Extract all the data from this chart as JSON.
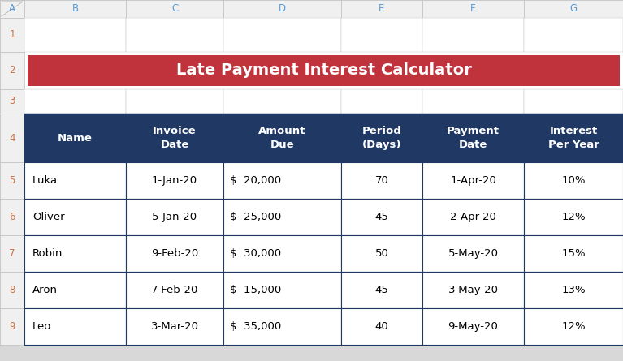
{
  "title": "Late Payment Interest Calculator",
  "title_bg_color": "#C0323C",
  "title_text_color": "#FFFFFF",
  "header_bg_color": "#1F3864",
  "header_text_color": "#FFFFFF",
  "cell_bg_color": "#FFFFFF",
  "cell_text_color": "#000000",
  "border_color": "#1F3864",
  "outer_bg_color": "#D8D8D8",
  "col_headers": [
    "Name",
    "Invoice\nDate",
    "Amount\nDue",
    "Period\n(Days)",
    "Payment\nDate",
    "Interest\nPer Year"
  ],
  "rows": [
    [
      "Luka",
      "1-Jan-20",
      "$  20,000",
      "70",
      "1-Apr-20",
      "10%"
    ],
    [
      "Oliver",
      "5-Jan-20",
      "$  25,000",
      "45",
      "2-Apr-20",
      "12%"
    ],
    [
      "Robin",
      "9-Feb-20",
      "$  30,000",
      "50",
      "5-May-20",
      "15%"
    ],
    [
      "Aron",
      "7-Feb-20",
      "$  15,000",
      "45",
      "3-May-20",
      "13%"
    ],
    [
      "Leo",
      "3-Mar-20",
      "$  35,000",
      "40",
      "9-May-20",
      "12%"
    ]
  ],
  "excel_col_labels": [
    "A",
    "B",
    "C",
    "D",
    "E",
    "F",
    "G"
  ],
  "excel_row_labels": [
    "1",
    "2",
    "3",
    "4",
    "5",
    "6",
    "7",
    "8",
    "9"
  ],
  "figsize": [
    7.67,
    4.45
  ],
  "dpi": 100,
  "excel_header_color": "#F0F0F0",
  "excel_header_border": "#C0C0C0",
  "excel_row_label_color": "#C8734A",
  "excel_col_label_color": "#5B9BD5"
}
